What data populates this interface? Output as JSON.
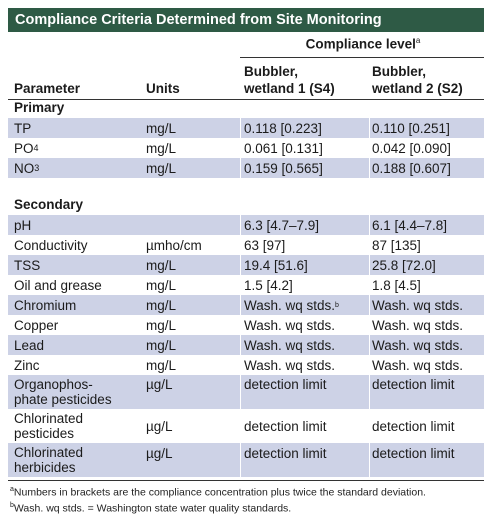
{
  "title": "Compliance Criteria Determined from Site Monitoring",
  "header": {
    "compliance_level": "Compliance level",
    "compliance_level_note": "a",
    "parameter": "Parameter",
    "units": "Units",
    "s4_line1": "Bubbler,",
    "s4_line2": "wetland 1 (S4)",
    "s2_line1": "Bubbler,",
    "s2_line2": "wetland 2 (S2)"
  },
  "sections": {
    "primary": "Primary",
    "secondary": "Secondary"
  },
  "rows": [
    {
      "param": "TP",
      "units": "mg/L",
      "s4": "0.118 [0.223]",
      "s2": "0.110 [0.251]"
    },
    {
      "param": "PO",
      "param_sub": "4",
      "units": "mg/L",
      "s4": "0.061 [0.131]",
      "s2": "0.042 [0.090]"
    },
    {
      "param": "NO",
      "param_sub": "3",
      "units": "mg/L",
      "s4": "0.159 [0.565]",
      "s2": "0.188 [0.607]"
    },
    {
      "param": "pH",
      "units": "",
      "s4": "6.3 [4.7–7.9]",
      "s2": "6.1 [4.4–7.8]"
    },
    {
      "param": "Conductivity",
      "units": "µmho/cm",
      "s4": "63 [97]",
      "s2": "87 [135]"
    },
    {
      "param": "TSS",
      "units": "mg/L",
      "s4": "19.4 [51.6]",
      "s2": "25.8 [72.0]"
    },
    {
      "param": "Oil and grease",
      "units": "mg/L",
      "s4": "1.5 [4.2]",
      "s2": "1.8 [4.5]"
    },
    {
      "param": "Chromium",
      "units": "mg/L",
      "s4": "Wash. wq stds.",
      "s4_note": "b",
      "s2": "Wash. wq stds."
    },
    {
      "param": "Copper",
      "units": "mg/L",
      "s4": "Wash. wq stds.",
      "s2": "Wash. wq stds."
    },
    {
      "param": "Lead",
      "units": "mg/L",
      "s4": "Wash. wq stds.",
      "s2": "Wash. wq stds."
    },
    {
      "param": "Zinc",
      "units": "mg/L",
      "s4": "Wash. wq stds.",
      "s2": "Wash. wq stds."
    },
    {
      "param_line1": "Organophos-",
      "param_line2": "phate pesticides",
      "units": "µg/L",
      "s4": "detection limit",
      "s2": "detection limit"
    },
    {
      "param_line1": "Chlorinated",
      "param_line2": "pesticides",
      "units": "µg/L",
      "s4": "detection limit",
      "s2": "detection limit"
    },
    {
      "param_line1": "Chlorinated",
      "param_line2": "herbicides",
      "units": "µg/L",
      "s4": "detection limit",
      "s2": "detection limit"
    }
  ],
  "footnotes": {
    "a_mark": "a",
    "a_text": "Numbers in brackets are the compliance concentration plus twice the standard deviation.",
    "b_mark": "b",
    "b_text": "Wash. wq stds. = Washington state water quality standards."
  }
}
